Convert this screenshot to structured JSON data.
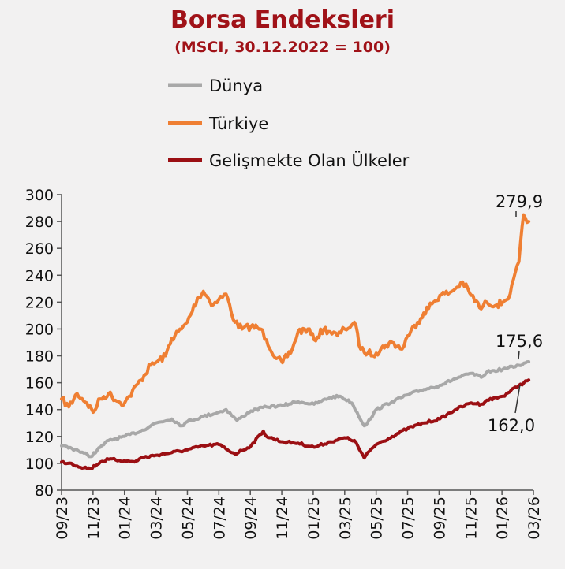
{
  "title": "Borsa Endeksleri",
  "subtitle": "(MSCI, 30.12.2022 = 100)",
  "colors": {
    "title": "#a01218",
    "world": "#a8a8a8",
    "turkey": "#ef7f33",
    "em": "#9b0f13",
    "axis": "#555555"
  },
  "chart_data": {
    "type": "line",
    "x_tick_labels": [
      "09/23",
      "11/23",
      "01/24",
      "03/24",
      "05/24",
      "07/24",
      "09/24",
      "11/24",
      "01/25",
      "03/25",
      "05/25",
      "07/25",
      "09/25",
      "11/25",
      "01/26",
      "03/26"
    ],
    "ylim": [
      80,
      300
    ],
    "y_ticks": [
      80,
      100,
      120,
      140,
      160,
      180,
      200,
      220,
      240,
      260,
      280,
      300
    ],
    "legend_position": "top",
    "series": [
      {
        "name": "Dünya",
        "color": "#a8a8a8",
        "x": [
          "2023-09-01",
          "2023-10-01",
          "2023-10-27",
          "2023-11-15",
          "2023-12-01",
          "2024-01-01",
          "2024-02-01",
          "2024-03-01",
          "2024-04-01",
          "2024-04-20",
          "2024-05-01",
          "2024-06-01",
          "2024-07-01",
          "2024-07-15",
          "2024-08-05",
          "2024-09-01",
          "2024-10-01",
          "2024-11-01",
          "2024-12-01",
          "2025-01-01",
          "2025-02-01",
          "2025-02-20",
          "2025-03-15",
          "2025-04-08",
          "2025-04-20",
          "2025-05-01",
          "2025-06-01",
          "2025-07-01",
          "2025-08-01",
          "2025-09-01",
          "2025-10-01",
          "2025-11-01",
          "2025-11-20",
          "2025-12-01",
          "2026-01-01",
          "2026-02-01",
          "2026-02-20"
        ],
        "values": [
          113,
          110,
          105,
          112,
          117,
          120,
          124,
          130,
          133,
          128,
          131,
          135,
          138,
          140,
          132,
          139,
          142,
          143,
          146,
          144,
          149,
          150,
          145,
          128,
          133,
          140,
          146,
          151,
          155,
          158,
          163,
          167,
          164,
          168,
          170,
          173,
          175.6
        ]
      },
      {
        "name": "Türkiye",
        "color": "#ef7f33",
        "x": [
          "2023-09-01",
          "2023-09-15",
          "2023-10-01",
          "2023-10-20",
          "2023-11-01",
          "2023-11-15",
          "2023-12-01",
          "2023-12-20",
          "2024-01-01",
          "2024-01-10",
          "2024-02-01",
          "2024-02-20",
          "2024-03-01",
          "2024-03-20",
          "2024-04-01",
          "2024-04-20",
          "2024-05-01",
          "2024-05-20",
          "2024-06-01",
          "2024-06-20",
          "2024-07-01",
          "2024-07-15",
          "2024-08-01",
          "2024-08-15",
          "2024-09-01",
          "2024-09-20",
          "2024-10-01",
          "2024-10-20",
          "2024-11-01",
          "2024-11-20",
          "2024-12-01",
          "2024-12-20",
          "2025-01-01",
          "2025-01-20",
          "2025-02-01",
          "2025-02-15",
          "2025-03-01",
          "2025-03-15",
          "2025-03-20",
          "2025-04-01",
          "2025-04-15",
          "2025-05-01",
          "2025-05-20",
          "2025-06-01",
          "2025-06-20",
          "2025-07-01",
          "2025-07-20",
          "2025-08-01",
          "2025-08-20",
          "2025-09-01",
          "2025-09-20",
          "2025-10-01",
          "2025-10-15",
          "2025-11-01",
          "2025-11-20",
          "2025-12-01",
          "2025-12-20",
          "2026-01-01",
          "2026-01-15",
          "2026-02-01",
          "2026-02-10",
          "2026-02-20"
        ],
        "values": [
          148,
          142,
          152,
          145,
          138,
          148,
          152,
          146,
          145,
          150,
          162,
          173,
          175,
          180,
          193,
          200,
          205,
          222,
          228,
          218,
          222,
          226,
          205,
          200,
          202,
          200,
          192,
          178,
          175,
          185,
          198,
          200,
          192,
          200,
          198,
          195,
          200,
          203,
          205,
          185,
          182,
          182,
          188,
          190,
          185,
          195,
          205,
          212,
          220,
          225,
          227,
          230,
          235,
          225,
          215,
          220,
          218,
          220,
          226,
          250,
          285,
          280
        ]
      },
      {
        "name": "Gelişmekte Olan Ülkeler",
        "color": "#9b0f13",
        "x": [
          "2023-09-01",
          "2023-09-20",
          "2023-10-01",
          "2023-10-27",
          "2023-11-15",
          "2023-12-01",
          "2024-01-01",
          "2024-01-20",
          "2024-02-01",
          "2024-03-01",
          "2024-04-01",
          "2024-05-01",
          "2024-06-01",
          "2024-07-01",
          "2024-08-01",
          "2024-09-01",
          "2024-09-25",
          "2024-10-01",
          "2024-11-01",
          "2024-12-01",
          "2025-01-01",
          "2025-02-01",
          "2025-03-01",
          "2025-03-20",
          "2025-04-08",
          "2025-04-20",
          "2025-05-01",
          "2025-06-01",
          "2025-07-01",
          "2025-08-01",
          "2025-09-01",
          "2025-10-01",
          "2025-11-01",
          "2025-11-20",
          "2025-12-01",
          "2026-01-01",
          "2026-02-01",
          "2026-02-20"
        ],
        "values": [
          101,
          100,
          98,
          96,
          101,
          103,
          102,
          101,
          104,
          106,
          108,
          110,
          113,
          114,
          107,
          113,
          124,
          120,
          116,
          115,
          112,
          116,
          119,
          117,
          104,
          110,
          114,
          120,
          126,
          130,
          133,
          140,
          145,
          144,
          147,
          150,
          158,
          162
        ]
      }
    ],
    "annotations": [
      "279,9",
      "175,6",
      "162,0"
    ]
  }
}
